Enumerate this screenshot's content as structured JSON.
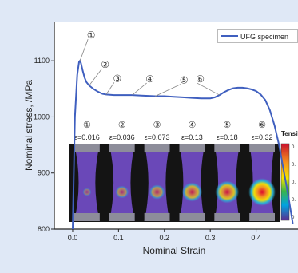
{
  "chart_data": {
    "type": "line",
    "xlabel": "Nominal Strain",
    "ylabel": "Nominal stress, /MPa",
    "xlim": [
      -0.04,
      0.5
    ],
    "ylim": [
      800,
      1170
    ],
    "xticks": [
      "0.0",
      "0.1",
      "0.2",
      "0.3",
      "0.4"
    ],
    "yticks": [
      "800",
      "900",
      "1000",
      "1100"
    ],
    "grid": false,
    "legend": {
      "placement": "top-right",
      "entries": [
        "UFG specimen"
      ]
    },
    "series": [
      {
        "name": "UFG specimen",
        "color": "#3f5fbf",
        "x": [
          0.0,
          0.005,
          0.01,
          0.014,
          0.016,
          0.018,
          0.022,
          0.026,
          0.03,
          0.036,
          0.045,
          0.055,
          0.065,
          0.073,
          0.09,
          0.11,
          0.13,
          0.15,
          0.18,
          0.2,
          0.22,
          0.24,
          0.26,
          0.28,
          0.3,
          0.31,
          0.32,
          0.33,
          0.34,
          0.35,
          0.36,
          0.37,
          0.38,
          0.39,
          0.4,
          0.41,
          0.42,
          0.43,
          0.44,
          0.45,
          0.46,
          0.47,
          0.48
        ],
        "y": [
          800,
          1000,
          1075,
          1098,
          1100,
          1096,
          1082,
          1070,
          1062,
          1056,
          1050,
          1045,
          1041,
          1040,
          1039,
          1039,
          1039,
          1038,
          1037,
          1037,
          1036,
          1035,
          1034,
          1033,
          1033,
          1035,
          1039,
          1044,
          1048,
          1051,
          1052,
          1052,
          1051,
          1049,
          1046,
          1040,
          1030,
          1012,
          985,
          950,
          905,
          860,
          810
        ]
      }
    ],
    "annotations": [
      {
        "label": "①",
        "x": 0.016
      },
      {
        "label": "②",
        "x": 0.036
      },
      {
        "label": "③",
        "x": 0.073
      },
      {
        "label": "④",
        "x": 0.13
      },
      {
        "label": "⑤",
        "x": 0.18
      },
      {
        "label": "⑥",
        "x": 0.32
      }
    ],
    "inset": {
      "panels": [
        {
          "num": "①",
          "strain": "ε=0.016",
          "intensity": 0.05
        },
        {
          "num": "②",
          "strain": "ε=0.036",
          "intensity": 0.25
        },
        {
          "num": "③",
          "strain": "ε=0.073",
          "intensity": 0.35
        },
        {
          "num": "④",
          "strain": "ε=0.13",
          "intensity": 0.55
        },
        {
          "num": "⑤",
          "strain": "ε=0.18",
          "intensity": 0.7
        },
        {
          "num": "⑥",
          "strain": "ε=0.32",
          "intensity": 0.95
        }
      ],
      "colorbar_title": "Tensile strain",
      "colorbar_ticks": [
        "0.",
        "0.",
        "0.",
        "0.",
        "0"
      ]
    }
  }
}
